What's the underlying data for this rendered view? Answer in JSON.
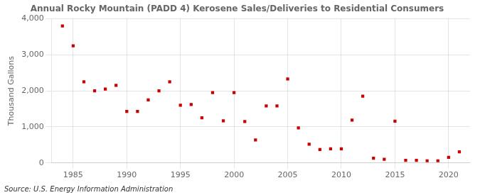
{
  "chart_data": {
    "type": "scatter",
    "title": "Annual Rocky Mountain (PADD 4) Kerosene Sales/Deliveries to Residential Consumers",
    "ylabel": "Thousand Gallons",
    "source": "Source: U.S. Energy Information Administration",
    "x": [
      1984,
      1985,
      1986,
      1987,
      1988,
      1989,
      1990,
      1991,
      1992,
      1993,
      1994,
      1995,
      1996,
      1997,
      1998,
      1999,
      2000,
      2001,
      2002,
      2003,
      2004,
      2005,
      2006,
      2007,
      2008,
      2009,
      2010,
      2011,
      2012,
      2013,
      2014,
      2015,
      2016,
      2017,
      2018,
      2019,
      2020,
      2021
    ],
    "values": [
      3800,
      3250,
      2250,
      2000,
      2050,
      2150,
      1430,
      1430,
      1750,
      2000,
      2250,
      1600,
      1620,
      1250,
      1950,
      1170,
      1950,
      1150,
      640,
      1580,
      1580,
      2330,
      970,
      520,
      370,
      390,
      390,
      1190,
      1850,
      130,
      100,
      1160,
      70,
      70,
      60,
      60,
      155,
      310
    ],
    "color": "#cc0000",
    "marker": "square",
    "xlim": [
      1983,
      2022
    ],
    "xticks": [
      1985,
      1990,
      1995,
      2000,
      2005,
      2010,
      2015,
      2020
    ],
    "ylim": [
      0,
      4000
    ],
    "yticks": [
      0,
      {
        "value": 1000,
        "label": "1,000"
      },
      {
        "value": 2000,
        "label": "2,000"
      },
      {
        "value": 3000,
        "label": "3,000"
      },
      {
        "value": 4000,
        "label": "4,000"
      }
    ],
    "grid": true
  }
}
